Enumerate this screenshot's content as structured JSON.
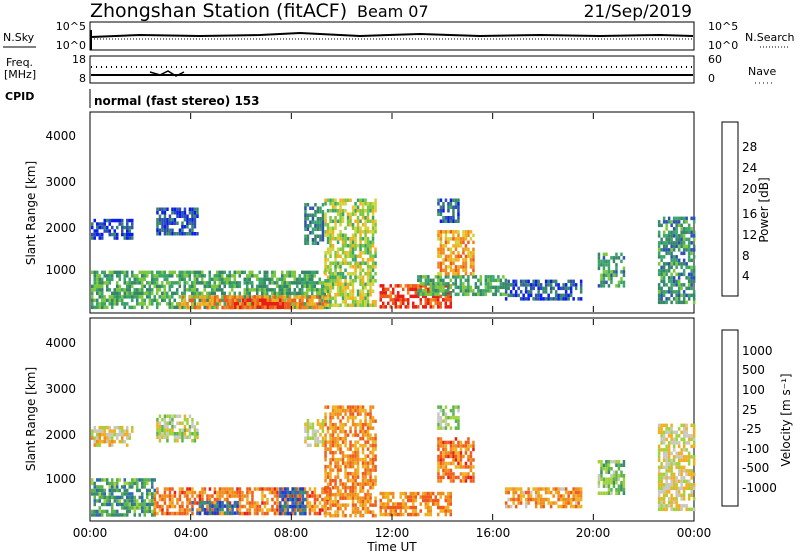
{
  "header": {
    "station": "Zhongshan Station (fitACF)",
    "beam": "Beam 07",
    "date": "21/Sep/2019"
  },
  "nsky": {
    "label": "N.Sky",
    "ticks": [
      "10^5",
      "10^0"
    ],
    "right_ticks": [
      "10^5",
      "10^0"
    ],
    "search_label": "N.Search"
  },
  "freq": {
    "label_line1": "Freq.",
    "label_line2": "[MHz]",
    "ticks": [
      "18",
      "8"
    ],
    "right_ticks": [
      "60",
      "0"
    ],
    "nave_label": "Nave"
  },
  "cpid": {
    "label": "CPID",
    "value": "normal (fast stereo) 153"
  },
  "x_axis": {
    "label": "Time UT",
    "ticks": [
      "00:00",
      "04:00",
      "08:00",
      "12:00",
      "16:00",
      "20:00",
      "00:00"
    ]
  },
  "chart_data": [
    {
      "type": "heatmap",
      "title": "",
      "xlabel": "Time UT",
      "ylabel": "Slant Range [km]",
      "xlim": [
        0,
        24
      ],
      "ylim": [
        180,
        4600
      ],
      "yticks": [
        "1000",
        "2000",
        "3000",
        "4000"
      ],
      "colorbar": {
        "label": "Power [dB]",
        "ticks": [
          "4",
          "8",
          "12",
          "16",
          "20",
          "24",
          "28"
        ],
        "colors": [
          "#0a1cf0",
          "#2e50b4",
          "#36866a",
          "#3aa46a",
          "#7cc83c",
          "#d2d23c",
          "#f2b01a",
          "#f0861c",
          "#f05a1c",
          "#e81e14"
        ]
      },
      "regions": [
        {
          "t0": 0.0,
          "t1": 9.5,
          "r0": 300,
          "r1": 1100,
          "level": 0.35
        },
        {
          "t0": 3.5,
          "t1": 9.5,
          "r0": 300,
          "r1": 550,
          "level": 0.75
        },
        {
          "t0": 5.5,
          "t1": 7.8,
          "r0": 300,
          "r1": 480,
          "level": 0.9
        },
        {
          "t0": 0.0,
          "t1": 1.6,
          "r0": 1800,
          "r1": 2250,
          "level": 0.12
        },
        {
          "t0": 2.6,
          "t1": 4.2,
          "r0": 1950,
          "r1": 2500,
          "level": 0.15
        },
        {
          "t0": 8.5,
          "t1": 9.2,
          "r0": 1700,
          "r1": 2600,
          "level": 0.25
        },
        {
          "t0": 9.3,
          "t1": 11.3,
          "r0": 300,
          "r1": 2700,
          "level": 0.5
        },
        {
          "t0": 11.5,
          "t1": 14.3,
          "r0": 300,
          "r1": 800,
          "level": 0.9
        },
        {
          "t0": 13.0,
          "t1": 16.5,
          "r0": 600,
          "r1": 1000,
          "level": 0.35
        },
        {
          "t0": 13.8,
          "t1": 15.2,
          "r0": 1000,
          "r1": 2000,
          "level": 0.7
        },
        {
          "t0": 13.8,
          "t1": 14.6,
          "r0": 2200,
          "r1": 2700,
          "level": 0.2
        },
        {
          "t0": 16.5,
          "t1": 19.5,
          "r0": 500,
          "r1": 900,
          "level": 0.15
        },
        {
          "t0": 20.2,
          "t1": 21.2,
          "r0": 800,
          "r1": 1500,
          "level": 0.3
        },
        {
          "t0": 22.6,
          "t1": 24.0,
          "r0": 400,
          "r1": 2300,
          "level": 0.3
        }
      ]
    },
    {
      "type": "heatmap",
      "title": "",
      "xlabel": "Time UT",
      "ylabel": "Slant Range [km]",
      "xlim": [
        0,
        24
      ],
      "ylim": [
        180,
        4600
      ],
      "yticks": [
        "1000",
        "2000",
        "3000",
        "4000"
      ],
      "colorbar": {
        "label": "Velocity [m s⁻¹]",
        "ticks": [
          "1000",
          "500",
          "100",
          "25",
          "-25",
          "-100",
          "-500",
          "-1000"
        ],
        "colors": [
          "#1e3cd0",
          "#2f6ab4",
          "#3a8c6c",
          "#5cb44c",
          "#a0d23c",
          "#c8c8c0",
          "#f0b020",
          "#f08c1c",
          "#f05a1c",
          "#e81e14"
        ]
      },
      "regions": [
        {
          "t0": 0.0,
          "t1": 2.5,
          "r0": 300,
          "r1": 1100,
          "level": 0.28
        },
        {
          "t0": 2.5,
          "t1": 9.5,
          "r0": 300,
          "r1": 900,
          "level": 0.78
        },
        {
          "t0": 4.0,
          "t1": 5.8,
          "r0": 350,
          "r1": 600,
          "level": 0.15
        },
        {
          "t0": 7.5,
          "t1": 8.5,
          "r0": 300,
          "r1": 900,
          "level": 0.12
        },
        {
          "t0": 0.0,
          "t1": 1.6,
          "r0": 1800,
          "r1": 2250,
          "level": 0.58
        },
        {
          "t0": 2.6,
          "t1": 4.2,
          "r0": 1950,
          "r1": 2500,
          "level": 0.5
        },
        {
          "t0": 8.5,
          "t1": 9.2,
          "r0": 1800,
          "r1": 2400,
          "level": 0.55
        },
        {
          "t0": 9.3,
          "t1": 11.3,
          "r0": 300,
          "r1": 2700,
          "level": 0.75
        },
        {
          "t0": 11.5,
          "t1": 14.3,
          "r0": 300,
          "r1": 800,
          "level": 0.75
        },
        {
          "t0": 13.8,
          "t1": 15.2,
          "r0": 1000,
          "r1": 2000,
          "level": 0.78
        },
        {
          "t0": 13.8,
          "t1": 14.6,
          "r0": 2200,
          "r1": 2700,
          "level": 0.45
        },
        {
          "t0": 16.5,
          "t1": 19.5,
          "r0": 500,
          "r1": 900,
          "level": 0.72
        },
        {
          "t0": 20.2,
          "t1": 21.2,
          "r0": 800,
          "r1": 1500,
          "level": 0.4
        },
        {
          "t0": 22.6,
          "t1": 24.0,
          "r0": 400,
          "r1": 2300,
          "level": 0.55
        }
      ]
    }
  ]
}
